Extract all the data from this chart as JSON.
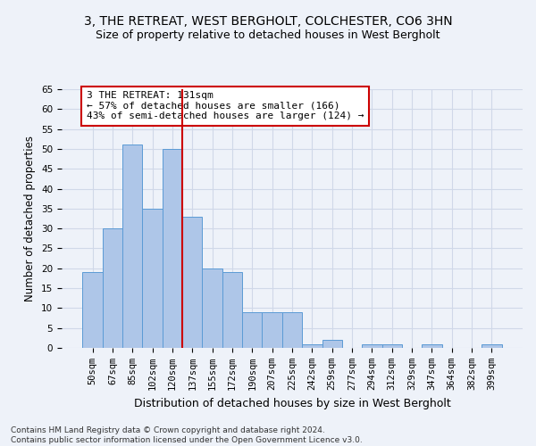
{
  "title": "3, THE RETREAT, WEST BERGHOLT, COLCHESTER, CO6 3HN",
  "subtitle": "Size of property relative to detached houses in West Bergholt",
  "xlabel": "Distribution of detached houses by size in West Bergholt",
  "ylabel": "Number of detached properties",
  "categories": [
    "50sqm",
    "67sqm",
    "85sqm",
    "102sqm",
    "120sqm",
    "137sqm",
    "155sqm",
    "172sqm",
    "190sqm",
    "207sqm",
    "225sqm",
    "242sqm",
    "259sqm",
    "277sqm",
    "294sqm",
    "312sqm",
    "329sqm",
    "347sqm",
    "364sqm",
    "382sqm",
    "399sqm"
  ],
  "values": [
    19,
    30,
    51,
    35,
    50,
    33,
    20,
    19,
    9,
    9,
    9,
    1,
    2,
    0,
    1,
    1,
    0,
    1,
    0,
    0,
    1
  ],
  "bar_color": "#aec6e8",
  "bar_edge_color": "#5b9bd5",
  "grid_color": "#d0d8e8",
  "background_color": "#eef2f9",
  "vline_x_index": 4.5,
  "vline_color": "#cc0000",
  "annotation_text": "3 THE RETREAT: 131sqm\n← 57% of detached houses are smaller (166)\n43% of semi-detached houses are larger (124) →",
  "annotation_box_color": "#ffffff",
  "annotation_box_edge": "#cc0000",
  "ylim": [
    0,
    65
  ],
  "yticks": [
    0,
    5,
    10,
    15,
    20,
    25,
    30,
    35,
    40,
    45,
    50,
    55,
    60,
    65
  ],
  "footnote": "Contains HM Land Registry data © Crown copyright and database right 2024.\nContains public sector information licensed under the Open Government Licence v3.0.",
  "title_fontsize": 10,
  "subtitle_fontsize": 9,
  "xlabel_fontsize": 9,
  "ylabel_fontsize": 8.5,
  "tick_fontsize": 7.5,
  "annotation_fontsize": 8,
  "footnote_fontsize": 6.5
}
